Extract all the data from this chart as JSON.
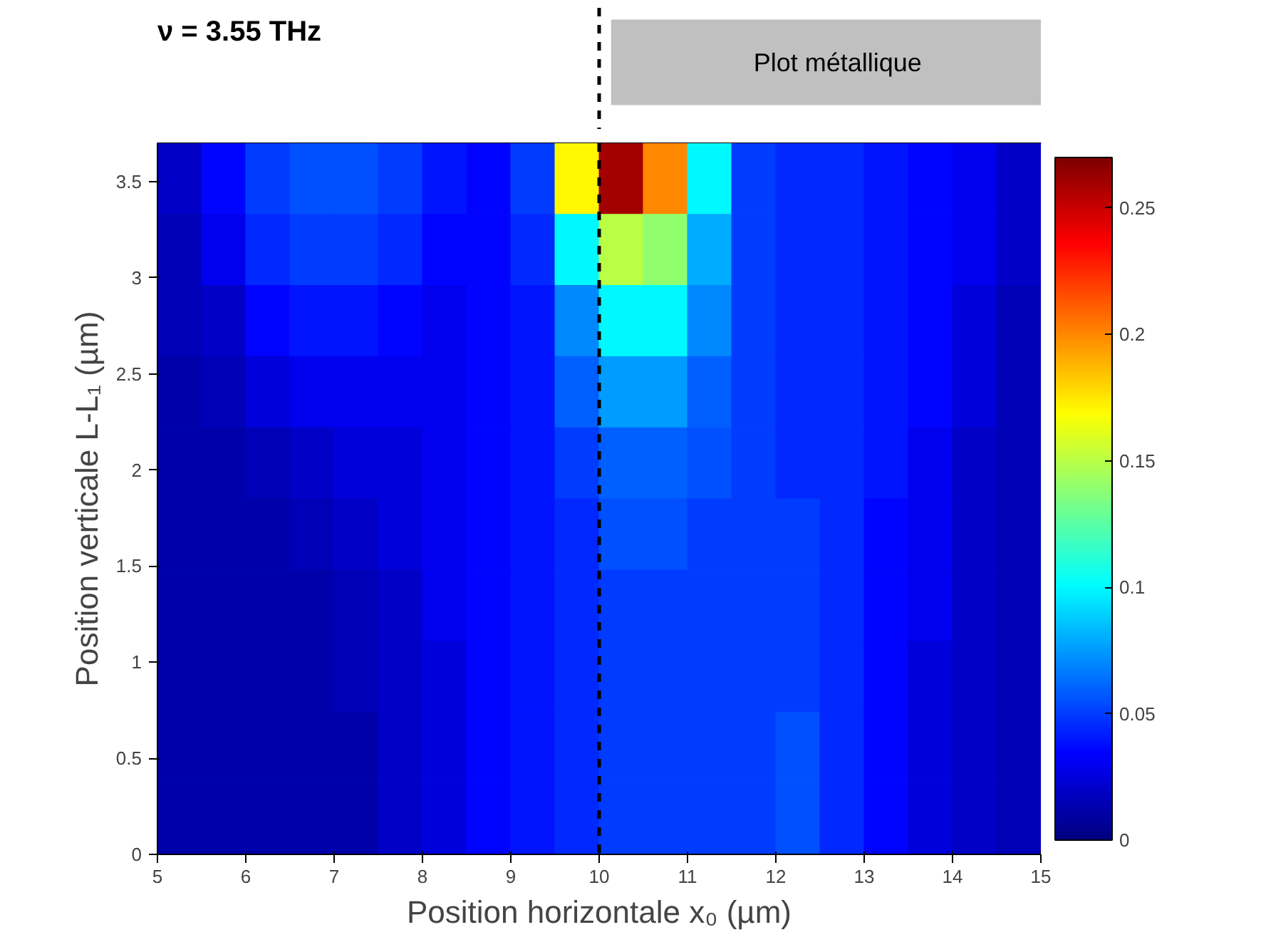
{
  "chart_data": {
    "type": "heatmap",
    "title": "ν = 3.55 THz",
    "xlabel": "Position horizontale x₀ (µm)",
    "ylabel": "Position verticale L-L₁ (µm)",
    "x": [
      5.25,
      5.75,
      6.25,
      6.75,
      7.25,
      7.75,
      8.25,
      8.75,
      9.25,
      9.75,
      10.25,
      10.75,
      11.25,
      11.75,
      12.25,
      12.75,
      13.25,
      13.75,
      14.25,
      14.75
    ],
    "y": [
      3.515,
      3.145,
      2.775,
      2.405,
      2.035,
      1.665,
      1.295,
      0.925,
      0.555,
      0.185
    ],
    "cells": [
      [
        0.02,
        0.035,
        0.05,
        0.055,
        0.055,
        0.05,
        0.04,
        0.035,
        0.05,
        0.17,
        0.26,
        0.2,
        0.1,
        0.05,
        0.045,
        0.045,
        0.04,
        0.035,
        0.03,
        0.02
      ],
      [
        0.015,
        0.03,
        0.045,
        0.05,
        0.05,
        0.045,
        0.035,
        0.035,
        0.045,
        0.1,
        0.15,
        0.14,
        0.08,
        0.05,
        0.045,
        0.045,
        0.04,
        0.035,
        0.03,
        0.02
      ],
      [
        0.015,
        0.02,
        0.035,
        0.04,
        0.04,
        0.035,
        0.03,
        0.035,
        0.04,
        0.07,
        0.1,
        0.1,
        0.07,
        0.05,
        0.045,
        0.045,
        0.04,
        0.035,
        0.025,
        0.015
      ],
      [
        0.012,
        0.015,
        0.025,
        0.03,
        0.03,
        0.03,
        0.03,
        0.035,
        0.04,
        0.06,
        0.075,
        0.075,
        0.06,
        0.05,
        0.045,
        0.045,
        0.04,
        0.035,
        0.025,
        0.015
      ],
      [
        0.012,
        0.012,
        0.015,
        0.02,
        0.025,
        0.025,
        0.03,
        0.035,
        0.04,
        0.05,
        0.06,
        0.06,
        0.055,
        0.05,
        0.045,
        0.045,
        0.04,
        0.03,
        0.02,
        0.015
      ],
      [
        0.012,
        0.012,
        0.012,
        0.015,
        0.02,
        0.025,
        0.03,
        0.035,
        0.04,
        0.045,
        0.055,
        0.055,
        0.05,
        0.05,
        0.05,
        0.045,
        0.035,
        0.03,
        0.02,
        0.015
      ],
      [
        0.012,
        0.012,
        0.012,
        0.012,
        0.015,
        0.02,
        0.03,
        0.035,
        0.04,
        0.045,
        0.05,
        0.05,
        0.05,
        0.05,
        0.05,
        0.045,
        0.035,
        0.03,
        0.02,
        0.015
      ],
      [
        0.012,
        0.012,
        0.012,
        0.012,
        0.015,
        0.02,
        0.025,
        0.035,
        0.04,
        0.045,
        0.05,
        0.05,
        0.05,
        0.05,
        0.05,
        0.045,
        0.035,
        0.025,
        0.02,
        0.015
      ],
      [
        0.012,
        0.012,
        0.012,
        0.012,
        0.012,
        0.02,
        0.025,
        0.035,
        0.04,
        0.045,
        0.05,
        0.05,
        0.05,
        0.05,
        0.055,
        0.045,
        0.035,
        0.025,
        0.02,
        0.015
      ],
      [
        0.012,
        0.012,
        0.012,
        0.012,
        0.012,
        0.02,
        0.025,
        0.035,
        0.04,
        0.045,
        0.05,
        0.05,
        0.05,
        0.05,
        0.055,
        0.045,
        0.035,
        0.025,
        0.02,
        0.015
      ]
    ],
    "xlim": [
      5,
      15
    ],
    "ylim": [
      0,
      3.7
    ],
    "xticks": [
      5,
      6,
      7,
      8,
      9,
      10,
      11,
      12,
      13,
      14,
      15
    ],
    "yticks": [
      0,
      0.5,
      1,
      1.5,
      2,
      2.5,
      3,
      3.5
    ],
    "clim": [
      0,
      0.27
    ],
    "cticks": [
      0,
      0.05,
      0.1,
      0.15,
      0.2,
      0.25
    ],
    "ref_lines": [
      {
        "axis": "x",
        "value": 10,
        "label": null,
        "color": "#000000",
        "line_style": "dashed"
      }
    ],
    "annotations": [
      "Plot métallique"
    ]
  }
}
